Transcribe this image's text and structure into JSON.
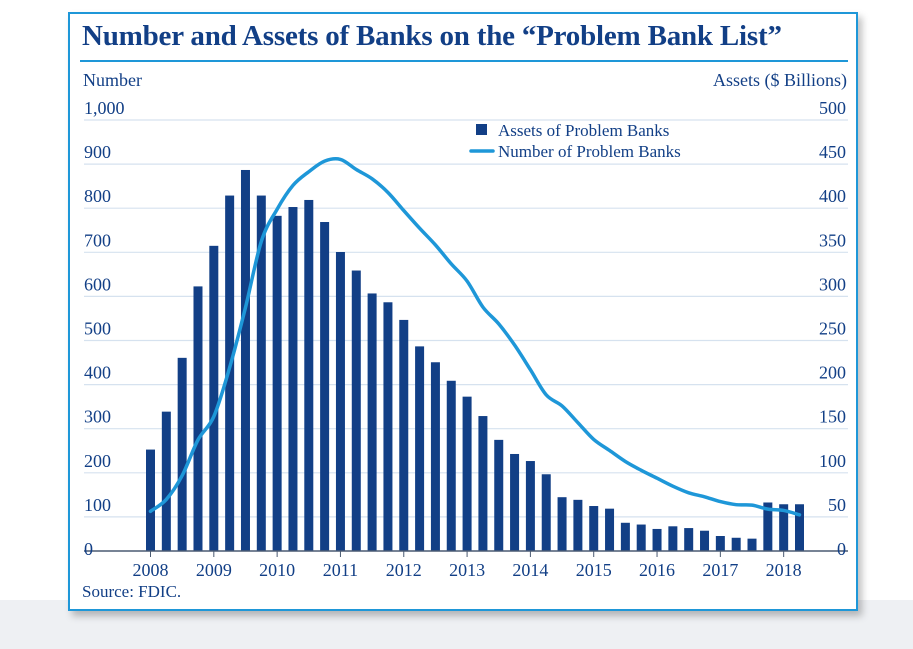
{
  "colors": {
    "frame": "#1e97d8",
    "text": "#123f86",
    "bar": "#123f86",
    "line": "#1e97d8",
    "grid": "#d6e2ef",
    "axis": "#4a5a72"
  },
  "title": "Number and Assets of Banks on the “Problem Bank List”",
  "left_axis_title": "Number",
  "right_axis_title": "Assets ($ Billions)",
  "source": "Source: FDIC.",
  "chart_data": {
    "type": "bar+line",
    "title": "Number and Assets of Banks on the “Problem Bank List”",
    "xlabel": "",
    "x_ticks": [
      "2008",
      "2009",
      "2010",
      "2011",
      "2012",
      "2013",
      "2014",
      "2015",
      "2016",
      "2017",
      "2018"
    ],
    "y_left": {
      "label": "Number",
      "range": [
        0,
        1000
      ],
      "ticks": [
        "0",
        "100",
        "200",
        "300",
        "400",
        "500",
        "600",
        "700",
        "800",
        "900",
        "1,000"
      ]
    },
    "y_right": {
      "label": "Assets ($ Billions)",
      "range": [
        0,
        500
      ],
      "ticks": [
        "0",
        "50",
        "100",
        "150",
        "200",
        "250",
        "300",
        "350",
        "400",
        "450",
        "500"
      ]
    },
    "legend": {
      "position": "top-center",
      "entries": [
        "Assets of Problem Banks",
        "Number of Problem Banks"
      ]
    },
    "series": [
      {
        "name": "Assets of Problem Banks",
        "type": "bar",
        "axis": "right",
        "quarters": [
          "2008Q1",
          "2008Q2",
          "2008Q3",
          "2008Q4",
          "2009Q1",
          "2009Q2",
          "2009Q3",
          "2009Q4",
          "2010Q1",
          "2010Q2",
          "2010Q3",
          "2010Q4",
          "2011Q1",
          "2011Q2",
          "2011Q3",
          "2011Q4",
          "2012Q1",
          "2012Q2",
          "2012Q3",
          "2012Q4",
          "2013Q1",
          "2013Q2",
          "2013Q3",
          "2013Q4",
          "2014Q1",
          "2014Q2",
          "2014Q3",
          "2014Q4",
          "2015Q1",
          "2015Q2",
          "2015Q3",
          "2015Q4",
          "2016Q1",
          "2016Q2",
          "2016Q3",
          "2016Q4",
          "2017Q1",
          "2017Q2",
          "2017Q3",
          "2017Q4",
          "2018Q1",
          "2018Q2"
        ],
        "values": [
          115,
          158,
          219,
          300,
          346,
          403,
          432,
          403,
          380,
          390,
          398,
          373,
          339,
          318,
          292,
          282,
          262,
          232,
          214,
          193,
          175,
          153,
          126,
          110,
          102,
          87,
          61,
          58,
          51,
          48,
          32,
          30,
          25,
          28,
          26,
          23,
          17,
          15,
          14,
          55,
          53,
          53
        ]
      },
      {
        "name": "Number of Problem Banks",
        "type": "line",
        "axis": "left",
        "quarters": [
          "2008Q1",
          "2008Q2",
          "2008Q3",
          "2008Q4",
          "2009Q1",
          "2009Q2",
          "2009Q3",
          "2009Q4",
          "2010Q1",
          "2010Q2",
          "2010Q3",
          "2010Q4",
          "2011Q1",
          "2011Q2",
          "2011Q3",
          "2011Q4",
          "2012Q1",
          "2012Q2",
          "2012Q3",
          "2012Q4",
          "2013Q1",
          "2013Q2",
          "2013Q3",
          "2013Q4",
          "2014Q1",
          "2014Q2",
          "2014Q3",
          "2014Q4",
          "2015Q1",
          "2015Q2",
          "2015Q3",
          "2015Q4",
          "2016Q1",
          "2016Q2",
          "2016Q3",
          "2016Q4",
          "2017Q1",
          "2017Q2",
          "2017Q3",
          "2017Q4",
          "2018Q1",
          "2018Q2"
        ],
        "values": [
          90,
          117,
          171,
          252,
          305,
          416,
          552,
          702,
          775,
          829,
          860,
          884,
          888,
          865,
          844,
          813,
          772,
          732,
          694,
          651,
          612,
          553,
          515,
          467,
          411,
          354,
          329,
          291,
          253,
          228,
          203,
          183,
          165,
          147,
          132,
          123,
          112,
          105,
          104,
          95,
          92,
          82
        ]
      }
    ]
  }
}
